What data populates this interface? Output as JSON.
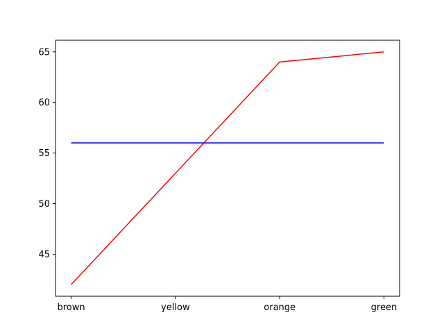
{
  "chart_data": {
    "type": "line",
    "categories": [
      "brown",
      "yellow",
      "orange",
      "green"
    ],
    "series": [
      {
        "values": [
          42,
          53,
          64,
          65
        ],
        "color": "#ff0000"
      },
      {
        "values": [
          56,
          56,
          56,
          56
        ],
        "color": "#0000ff"
      }
    ],
    "yticks": [
      45,
      50,
      55,
      60,
      65
    ],
    "ylim": [
      40.85,
      66.15
    ],
    "xlim": [
      -0.15,
      3.15
    ],
    "grid": false
  }
}
